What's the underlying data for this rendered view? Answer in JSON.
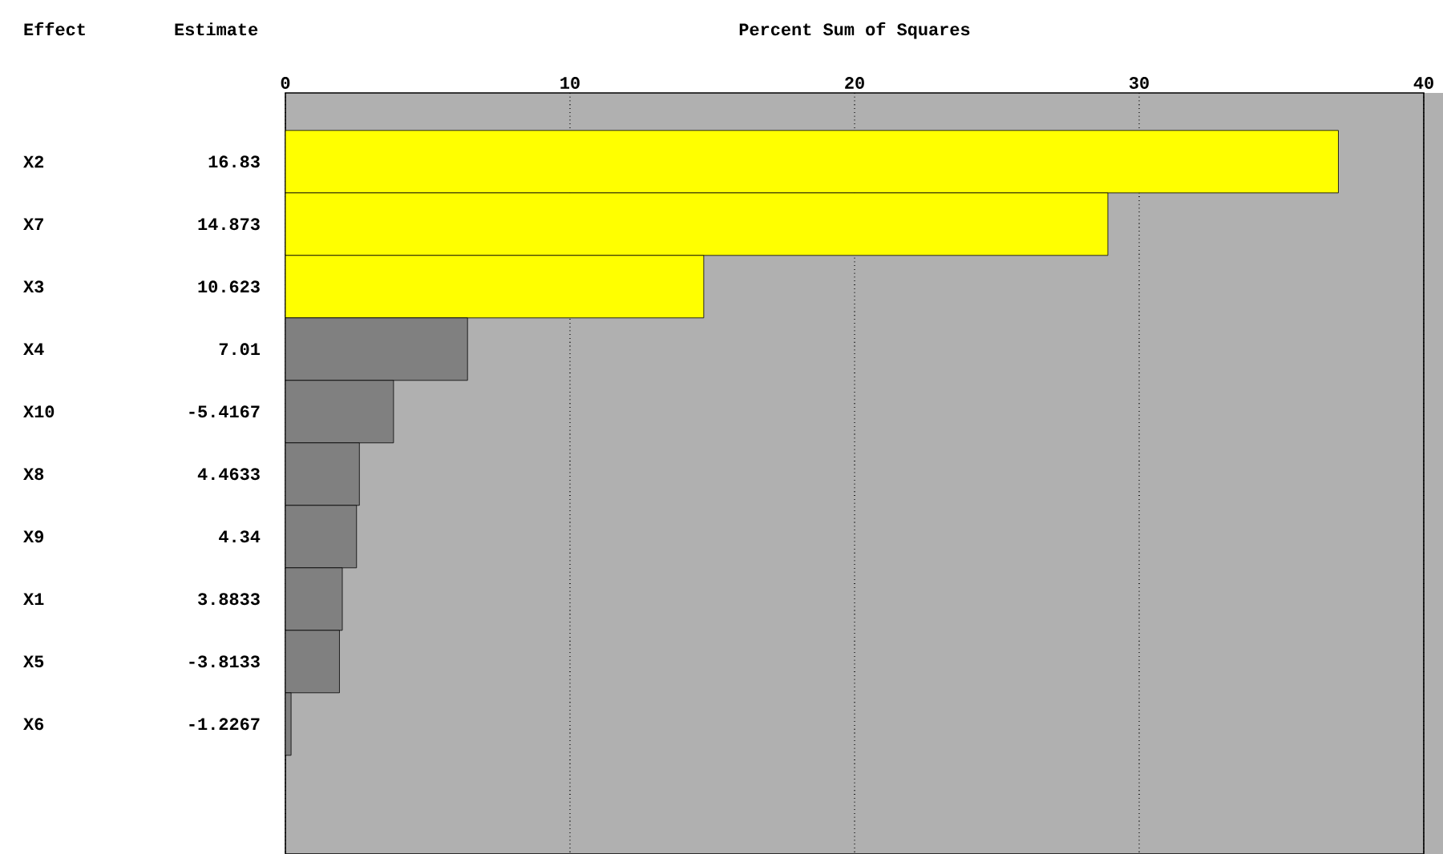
{
  "chart_data": {
    "type": "bar",
    "orientation": "horizontal",
    "x2label": "Percent Sum of Squares",
    "ylabel": "Effect",
    "categories": [
      "X2",
      "X7",
      "X3",
      "X4",
      "X10",
      "X8",
      "X9",
      "X1",
      "X5",
      "X6"
    ],
    "series": [
      {
        "axis": "x2",
        "values": [
          37.0,
          28.9,
          14.7,
          6.4,
          3.8,
          2.6,
          2.5,
          2.0,
          1.9,
          0.2
        ]
      }
    ],
    "colors": [
      "#ffff00",
      "#ffff00",
      "#ffff00",
      "#808080",
      "#808080",
      "#808080",
      "#808080",
      "#808080",
      "#808080",
      "#808080"
    ],
    "x2lim": [
      0,
      40
    ],
    "x2ticks": [
      0,
      10,
      20,
      30,
      40
    ],
    "grid": "x",
    "annotations": [
      "Estimate",
      "16.83",
      "14.873",
      "10.623",
      "7.01",
      "-5.4167",
      "4.4633",
      "4.34",
      "3.8833",
      "-3.8133",
      "-1.2267"
    ]
  }
}
